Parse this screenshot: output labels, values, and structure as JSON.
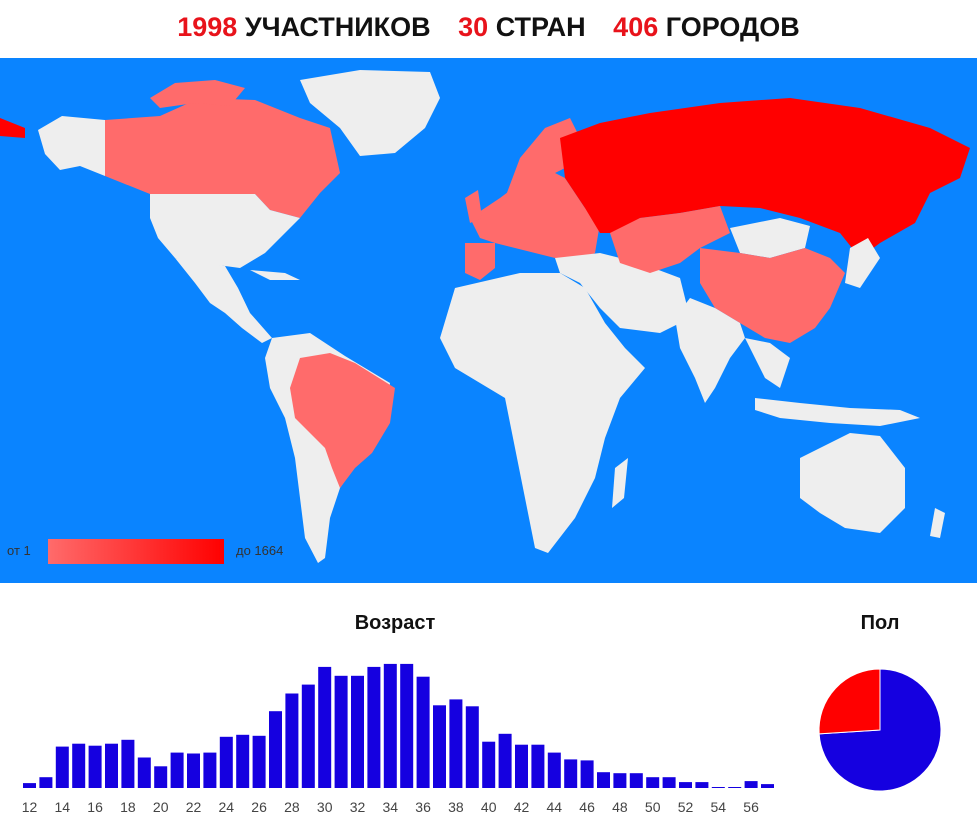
{
  "header": {
    "participants_count": "1998",
    "participants_label": "УЧАСТНИКОВ",
    "countries_count": "30",
    "countries_label": "СТРАН",
    "cities_count": "406",
    "cities_label": "ГОРОДОВ"
  },
  "colors": {
    "ocean": "#0a84ff",
    "land": "#eeeeee",
    "highlight_low": "#ff6b6b",
    "highlight_high": "#ff0000",
    "bars": "#1500e0",
    "accent_red": "#e8131b"
  },
  "map": {
    "legend_min": "от 1",
    "legend_max": "до 1664"
  },
  "chart_data": [
    {
      "type": "bar",
      "title": "Возраст",
      "categories": [
        "12",
        "13",
        "14",
        "15",
        "16",
        "17",
        "18",
        "19",
        "20",
        "21",
        "22",
        "23",
        "24",
        "25",
        "26",
        "27",
        "28",
        "29",
        "30",
        "31",
        "32",
        "33",
        "34",
        "35",
        "36",
        "37",
        "38",
        "39",
        "40",
        "41",
        "42",
        "43",
        "44",
        "45",
        "46",
        "47",
        "48",
        "49",
        "50",
        "51",
        "52",
        "53",
        "54",
        "55",
        "56",
        "57"
      ],
      "tick_labels": [
        "12",
        "14",
        "16",
        "18",
        "20",
        "22",
        "24",
        "26",
        "28",
        "30",
        "32",
        "34",
        "36",
        "38",
        "40",
        "42",
        "44",
        "46",
        "48",
        "50",
        "52",
        "54",
        "56"
      ],
      "values": [
        5,
        11,
        42,
        45,
        43,
        45,
        49,
        31,
        22,
        36,
        35,
        36,
        52,
        54,
        53,
        78,
        96,
        105,
        123,
        114,
        114,
        123,
        126,
        126,
        113,
        84,
        90,
        83,
        47,
        55,
        44,
        44,
        36,
        29,
        28,
        16,
        15,
        15,
        11,
        11,
        6,
        6,
        1,
        1,
        7,
        4
      ],
      "ylim": [
        0,
        130
      ]
    },
    {
      "type": "pie",
      "title": "Пол",
      "slices": [
        {
          "value": 74,
          "color": "#1500e0"
        },
        {
          "value": 26,
          "color": "#ff0000"
        }
      ]
    }
  ]
}
